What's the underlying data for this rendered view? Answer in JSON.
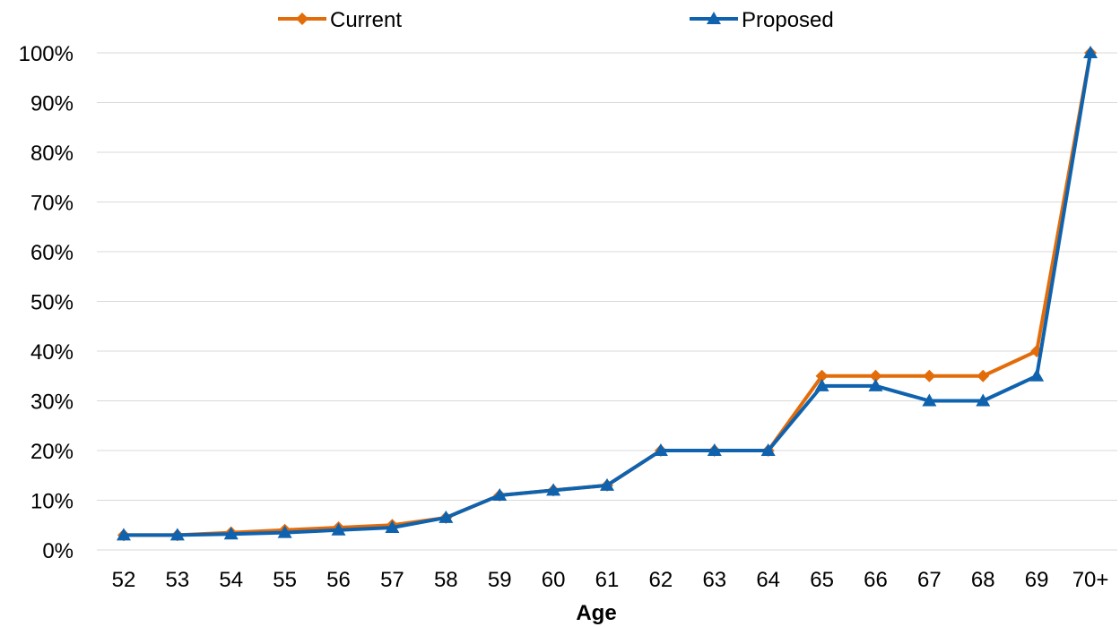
{
  "chart_data": {
    "type": "line",
    "categories": [
      "52",
      "53",
      "54",
      "55",
      "56",
      "57",
      "58",
      "59",
      "60",
      "61",
      "62",
      "63",
      "64",
      "65",
      "66",
      "67",
      "68",
      "69",
      "70+"
    ],
    "series": [
      {
        "name": "Current",
        "color": "#e36c0a",
        "marker": "diamond",
        "values": [
          3,
          3,
          3.5,
          4,
          4.5,
          5,
          6.5,
          11,
          12,
          13,
          20,
          20,
          20,
          35,
          35,
          35,
          35,
          40,
          100
        ]
      },
      {
        "name": "Proposed",
        "color": "#0f62ae",
        "marker": "triangle",
        "values": [
          3,
          3,
          3.2,
          3.5,
          4,
          4.5,
          6.5,
          11,
          12,
          13,
          20,
          20,
          20,
          33,
          33,
          30,
          30,
          35,
          100
        ]
      }
    ],
    "yticks": [
      "0%",
      "10%",
      "20%",
      "30%",
      "40%",
      "50%",
      "60%",
      "70%",
      "80%",
      "90%",
      "100%"
    ],
    "ylim": [
      0,
      100
    ],
    "xlabel": "Age",
    "ylabel": "",
    "title": "",
    "grid": "horizontal",
    "legend_position": "top"
  }
}
